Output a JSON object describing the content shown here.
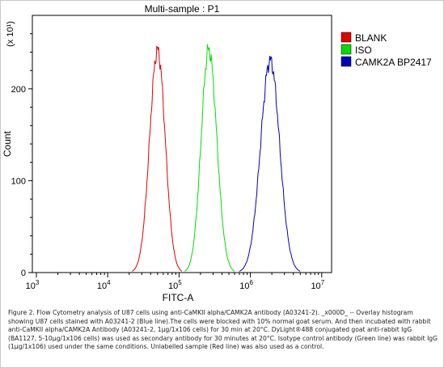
{
  "chart_data": {
    "type": "line",
    "title": "Multi-sample : P1",
    "xlabel": "FITC-A",
    "ylabel": "Count",
    "y_multiplier": "(x 10¹)",
    "x_scale": "log",
    "xlim": [
      1000,
      10000000
    ],
    "ylim": [
      0,
      280
    ],
    "x_tick_labels": [
      {
        "base": "10",
        "exp": "3",
        "value": 1000
      },
      {
        "base": "10",
        "exp": "4",
        "value": 10000
      },
      {
        "base": "10",
        "exp": "5",
        "value": 100000
      },
      {
        "base": "10",
        "exp": "6",
        "value": 1000000
      },
      {
        "base": "10",
        "exp": "7",
        "value": 10000000
      }
    ],
    "y_ticks": [
      0,
      100,
      200
    ],
    "legend_position": "right",
    "series": [
      {
        "name": "BLANK",
        "color": "#e00000",
        "peak_x": 50000,
        "peak_y": 242,
        "range_x": [
          22000,
          110000
        ]
      },
      {
        "name": "ISO",
        "color": "#00dd00",
        "peak_x": 260000,
        "peak_y": 243,
        "range_x": [
          120000,
          600000
        ]
      },
      {
        "name": "CAMK2A BP2417",
        "color": "#0000bb",
        "peak_x": 1900000,
        "peak_y": 231,
        "range_x": [
          700000,
          5000000
        ]
      }
    ]
  },
  "caption": "Figure 2. Flow Cytometry analysis of U87 cells using anti-CaMKII alpha/CAMK2A antibody (A03241-2). _x000D_ -- Overlay histogram showing U87 cells stained with A03241-2 (Blue line).The cells were blocked with 10% normal goat serum. And then incubated with rabbit anti-CaMKII alpha/CAMK2A Antibody (A03241-2, 1μg/1x106 cells) for 30 min at 20°C. DyLight®488 conjugated goat anti-rabbit IgG (BA1127, 5-10μg/1x106 cells) was used as secondary antibody for 30 minutes at 20°C. Isotype control antibody (Green line) was rabbit IgG (1μg/1x106) used under the same conditions. Unlabelled sample (Red line) was also used as a control."
}
